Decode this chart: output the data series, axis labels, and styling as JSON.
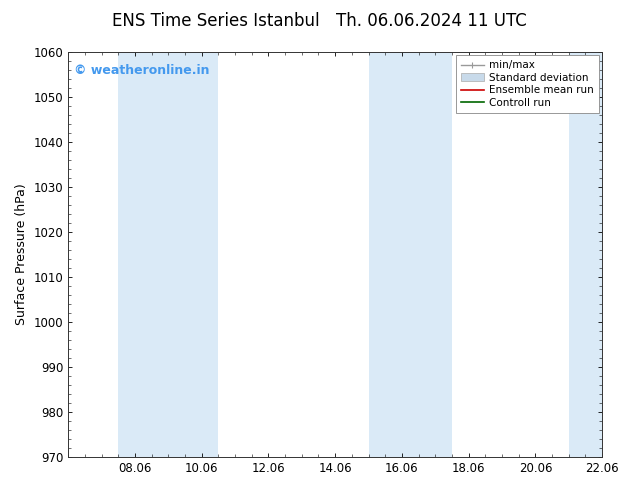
{
  "title": "ENS Time Series Istanbul",
  "subtitle": "Th. 06.06.2024 11 UTC",
  "ylabel": "Surface Pressure (hPa)",
  "ylim": [
    970,
    1060
  ],
  "yticks": [
    970,
    980,
    990,
    1000,
    1010,
    1020,
    1030,
    1040,
    1050,
    1060
  ],
  "xlim": [
    0,
    16
  ],
  "xtick_labels": [
    "08.06",
    "10.06",
    "12.06",
    "14.06",
    "16.06",
    "18.06",
    "20.06",
    "22.06"
  ],
  "xtick_positions": [
    2,
    4,
    6,
    8,
    10,
    12,
    14,
    16
  ],
  "shaded_bands": [
    {
      "xmin": 1.5,
      "xmax": 4.5
    },
    {
      "xmin": 9.0,
      "xmax": 11.5
    },
    {
      "xmin": 15.0,
      "xmax": 16.0
    }
  ],
  "band_color": "#daeaf7",
  "background_color": "#ffffff",
  "plot_bg_color": "#ffffff",
  "watermark_text": "© weatheronline.in",
  "watermark_color": "#4499ee",
  "legend_items": [
    {
      "label": "min/max",
      "color": "#999999",
      "lw": 1.0
    },
    {
      "label": "Standard deviation",
      "color": "#c8daea",
      "lw": 8
    },
    {
      "label": "Ensemble mean run",
      "color": "#cc0000",
      "lw": 1.2
    },
    {
      "label": "Controll run",
      "color": "#006600",
      "lw": 1.2
    }
  ],
  "title_fontsize": 12,
  "subtitle_fontsize": 12,
  "tick_fontsize": 8.5,
  "label_fontsize": 9,
  "watermark_fontsize": 9
}
